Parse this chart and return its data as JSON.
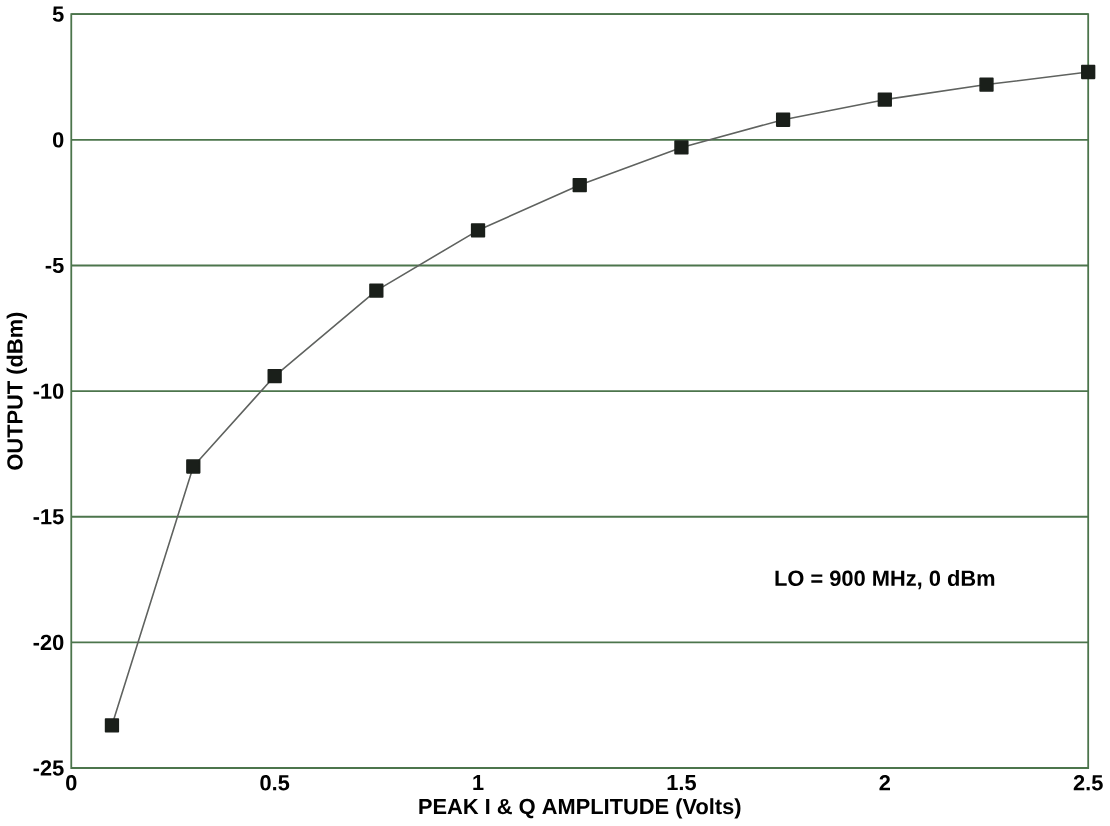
{
  "chart_data": {
    "type": "line",
    "xlabel": "PEAK I & Q AMPLITUDE (Volts)",
    "ylabel": "OUTPUT (dBm)",
    "x": [
      0.1,
      0.3,
      0.5,
      0.75,
      1,
      1.25,
      1.5,
      1.75,
      2,
      2.25,
      2.5
    ],
    "series": [
      {
        "color": "#1a1f1a",
        "values": [
          -23.3,
          -13,
          -9.4,
          -6,
          -3.6,
          -1.8,
          -0.3,
          0.8,
          1.6,
          2.2,
          2.7
        ]
      }
    ],
    "xlim": [
      0,
      2.5
    ],
    "ylim": [
      -25,
      5
    ],
    "xticks": [
      0,
      0.5,
      1,
      1.5,
      2,
      2.5
    ],
    "yticks": [
      -25,
      -20,
      -15,
      -10,
      -5,
      0,
      5
    ],
    "grid": "y",
    "marker": "square",
    "line_style": "solid",
    "annotations": [
      "LO = 900 MHz, 0 dBm"
    ]
  }
}
